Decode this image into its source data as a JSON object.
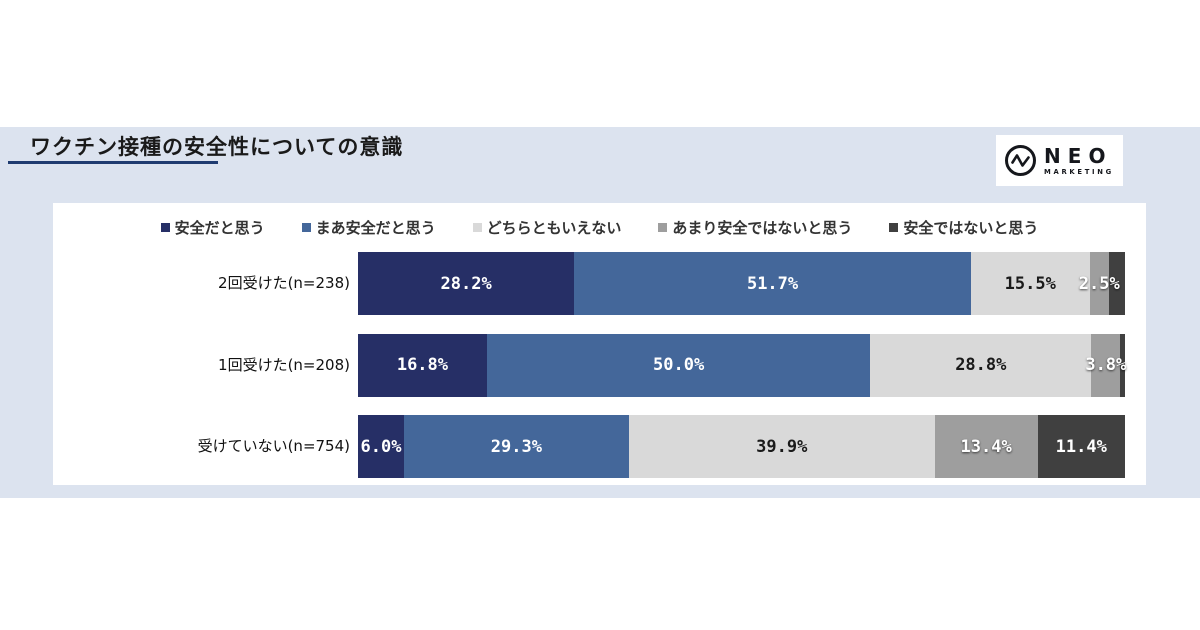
{
  "header": {
    "title": "ワクチン接種の安全性についての意識"
  },
  "logo": {
    "name": "NEO",
    "subtitle": "MARKETING"
  },
  "colors": {
    "band_background": "#dce3ef",
    "panel_background": "#ffffff",
    "title_underline": "#1f3b70",
    "legend_text": "#333333",
    "row_label_text": "#111111"
  },
  "chart_data": {
    "type": "bar",
    "variant": "horizontal-stacked",
    "unit": "percent",
    "legend_position": "top",
    "xlim": [
      0,
      100
    ],
    "title": "ワクチン接種の安全性についての意識",
    "categories": [
      "2回受けた(n=238)",
      "1回受けた(n=208)",
      "受けていない(n=754)"
    ],
    "series": [
      {
        "name": "安全だと思う",
        "color": "#262f66",
        "label_color": "#ffffff",
        "label_shadow": false,
        "values": [
          28.2,
          16.8,
          6.0
        ],
        "labels": [
          "28.2%",
          "16.8%",
          "6.0%"
        ]
      },
      {
        "name": "まあ安全だと思う",
        "color": "#44679a",
        "label_color": "#ffffff",
        "label_shadow": false,
        "values": [
          51.7,
          50.0,
          29.3
        ],
        "labels": [
          "51.7%",
          "50.0%",
          "29.3%"
        ]
      },
      {
        "name": "どちらともいえない",
        "color": "#d9d9d9",
        "label_color": "#1a1a1a",
        "label_shadow": false,
        "values": [
          15.5,
          28.8,
          39.9
        ],
        "labels": [
          "15.5%",
          "28.8%",
          "39.9%"
        ]
      },
      {
        "name": "あまり安全ではないと思う",
        "color": "#9e9e9e",
        "label_color": "#ffffff",
        "label_shadow": true,
        "values": [
          2.5,
          3.8,
          13.4
        ],
        "labels": [
          "2.5%",
          "3.8%",
          "13.4%"
        ]
      },
      {
        "name": "安全ではないと思う",
        "color": "#404040",
        "label_color": "#ffffff",
        "label_shadow": false,
        "values": [
          2.1,
          0.6,
          11.4
        ],
        "labels": [
          "",
          "",
          "11.4%"
        ]
      }
    ]
  }
}
